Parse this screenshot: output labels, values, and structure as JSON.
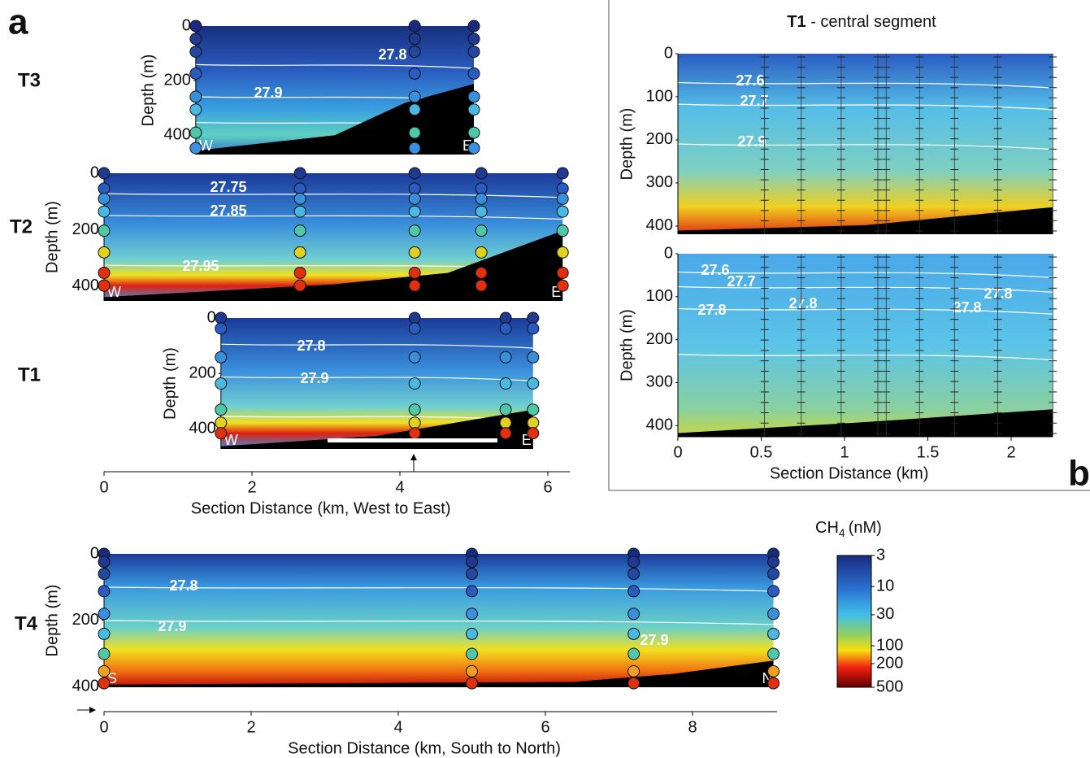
{
  "panel_a": {
    "label": "a",
    "x_axis": {
      "title": "Section Distance (km, West to East)",
      "xlim": [
        0,
        6.3
      ],
      "xticks": [
        0,
        2,
        4,
        6
      ]
    },
    "sections": [
      {
        "name": "T3",
        "y_label": "Depth (m)",
        "ylim": [
          0,
          470
        ],
        "yticks": [
          0,
          200,
          400
        ],
        "ends": [
          "W",
          "E"
        ],
        "contour_labels": [
          "27.8",
          "27.9"
        ],
        "stations": [
          1.24,
          4.2,
          5.0
        ]
      },
      {
        "name": "T2",
        "y_label": "Depth (m)",
        "ylim": [
          0,
          452
        ],
        "yticks": [
          0,
          200,
          400
        ],
        "ends": [
          "W",
          "E"
        ],
        "contour_labels": [
          "27.75",
          "27.85",
          "27.95"
        ],
        "stations": [
          0,
          2.65,
          4.2,
          5.1,
          6.2
        ]
      },
      {
        "name": "T1",
        "y_label": "Depth (m)",
        "ylim": [
          0,
          473
        ],
        "yticks": [
          0,
          200,
          400
        ],
        "ends": [
          "W",
          "E"
        ],
        "contour_labels": [
          "27.8",
          "27.9"
        ],
        "stations": [
          1.58,
          4.2,
          5.43,
          5.8
        ]
      }
    ]
  },
  "section_t4": {
    "name": "T4",
    "y_label": "Depth (m)",
    "ylim": [
      0,
      402
    ],
    "yticks": [
      0,
      200,
      400
    ],
    "ends": [
      "S",
      "N"
    ],
    "contour_labels": [
      "27.8",
      "27.9",
      "27.9"
    ],
    "stations": [
      0,
      5,
      7.2,
      9.1
    ],
    "x_axis": {
      "title": "Section Distance (km, South to North)",
      "xlim": [
        0,
        9.15
      ],
      "xticks": [
        0,
        2,
        4,
        6,
        8
      ]
    }
  },
  "panel_b": {
    "label": "b",
    "title_bold": "T1",
    "title_rest": "- central segment",
    "x_axis": {
      "title": "Section Distance (km)",
      "xlim": [
        0,
        2.25
      ],
      "xticks": [
        0,
        0.5,
        1,
        1.5,
        2
      ]
    },
    "stations": [
      0.52,
      0.74,
      0.98,
      1.2,
      1.25,
      1.45,
      1.66,
      1.92,
      2.25
    ],
    "plots": [
      {
        "y_label": "Depth (m)",
        "ylim": [
          0,
          419
        ],
        "yticks": [
          0,
          100,
          200,
          300,
          400
        ],
        "contour_labels": [
          "27.6",
          "27.7",
          "27.9"
        ]
      },
      {
        "y_label": "Depth (m)",
        "ylim": [
          0,
          426
        ],
        "yticks": [
          0,
          100,
          200,
          300,
          400
        ],
        "contour_labels": [
          "27.6",
          "27.7",
          "27.8",
          "27.8",
          "27.8",
          "27.8"
        ]
      }
    ]
  },
  "colorbar": {
    "title_main": "CH",
    "title_sub": "4",
    "title_unit": "(nM)",
    "log": true,
    "ylim": [
      3,
      500
    ],
    "yticks": [
      3,
      10,
      30,
      100,
      200,
      500
    ]
  }
}
